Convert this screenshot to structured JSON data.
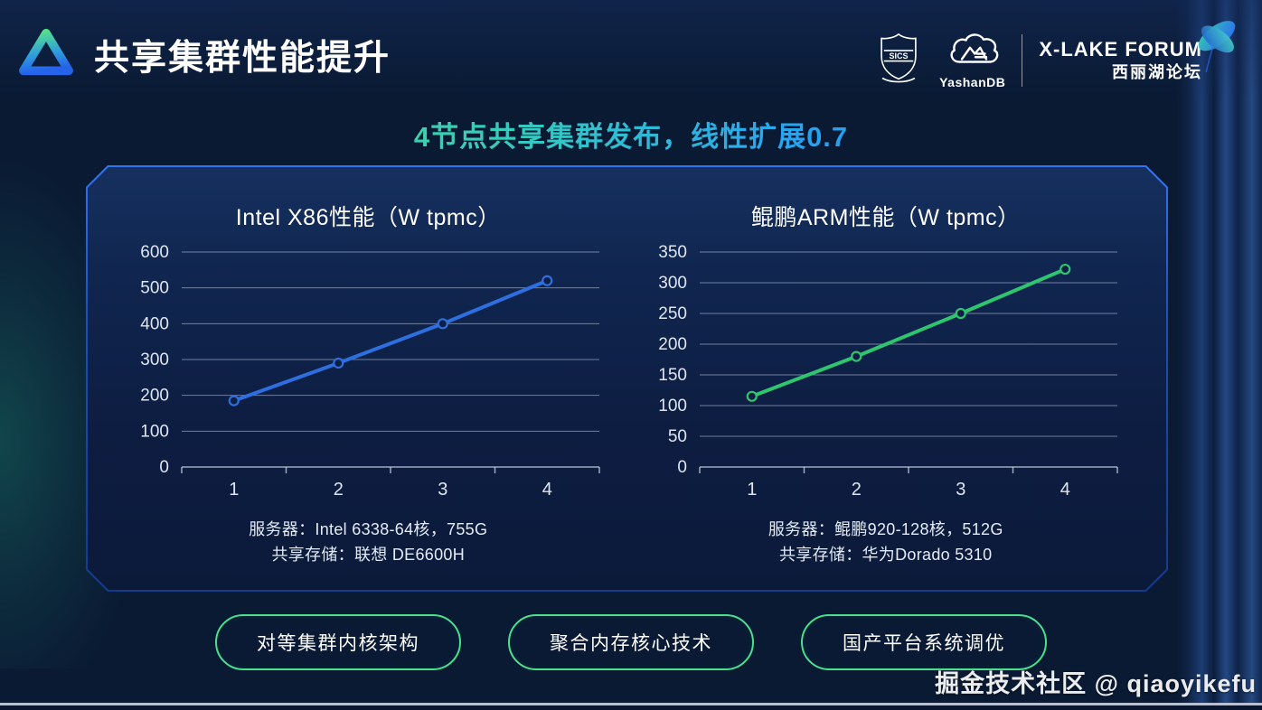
{
  "page": {
    "title": "共享集群性能提升",
    "subtitle": "4节点共享集群发布，线性扩展0.7",
    "watermark": "掘金技术社区 @ qiaoyikefu"
  },
  "header_logos": {
    "crest_text": "SICS",
    "yashandb_label": "YashanDB",
    "forum_name": "X-LAKE FORUM",
    "forum_name_cn": "西丽湖论坛"
  },
  "chart_data": [
    {
      "type": "line",
      "title": "Intel X86性能（W tpmc）",
      "x": [
        "1",
        "2",
        "3",
        "4"
      ],
      "values": [
        185,
        290,
        400,
        520
      ],
      "ylim": [
        0,
        600
      ],
      "yticks": [
        0,
        100,
        200,
        300,
        400,
        500,
        600
      ],
      "grid": true,
      "legend_position": "none",
      "color": "#2e6fdf",
      "spec_lines": [
        "服务器：Intel 6338-64核，755G",
        "共享存储：联想 DE6600H"
      ]
    },
    {
      "type": "line",
      "title": "鲲鹏ARM性能（W tpmc）",
      "x": [
        "1",
        "2",
        "3",
        "4"
      ],
      "values": [
        115,
        180,
        250,
        322
      ],
      "ylim": [
        0,
        350
      ],
      "yticks": [
        0,
        50,
        100,
        150,
        200,
        250,
        300,
        350
      ],
      "grid": true,
      "legend_position": "none",
      "color": "#2fc56f",
      "spec_lines": [
        "服务器：鲲鹏920-128核，512G",
        "共享存储：华为Dorado 5310"
      ]
    }
  ],
  "pills": [
    {
      "label": "对等集群内核架构"
    },
    {
      "label": "聚合内存核心技术"
    },
    {
      "label": "国产平台系统调优"
    }
  ],
  "colors": {
    "background": "#0a1a33",
    "panel_border": "#2a6bff",
    "pill_border_green": "#49e08e",
    "line_blue": "#2e6fdf",
    "line_green": "#2fc56f",
    "subtitle_gradient_start": "#46dd8a",
    "subtitle_gradient_end": "#1f7ce8"
  }
}
